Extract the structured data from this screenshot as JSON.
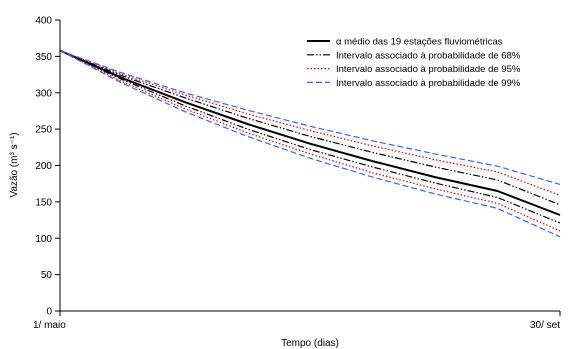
{
  "chart_data": {
    "type": "line",
    "xlabel": "Tempo (dias)",
    "ylabel": "Vazão (m³ s⁻¹)",
    "x_tick_labels": [
      "1/ maio",
      "30/ set"
    ],
    "x_range_days": [
      1,
      153
    ],
    "ylim": [
      0,
      400
    ],
    "y_ticks": [
      0,
      50,
      100,
      150,
      200,
      250,
      300,
      350,
      400
    ],
    "grid": false,
    "legend_position": "top-right",
    "x_sample_days": [
      1,
      20,
      39,
      58,
      77,
      96,
      115,
      134,
      153
    ],
    "series": [
      {
        "name": "α médio das 19 estações fluviométricas",
        "color": "#000000",
        "style": "solid",
        "values": [
          358,
          320,
          287,
          257,
          230,
          206,
          184,
          165,
          132
        ]
      },
      {
        "name": "Intervalo associado à probabilidade de 68%",
        "color": "#000000",
        "style": "dashdotdot",
        "bounds": [
          {
            "role": "upper",
            "values": [
              358,
              323,
              293,
              265,
              240,
              218,
              198,
              180,
              146
            ]
          },
          {
            "role": "lower",
            "values": [
              358,
              318,
              282,
              250,
              222,
              198,
              176,
              156,
              121
            ]
          }
        ]
      },
      {
        "name": "Intervalo associado à probabilidade de 95%",
        "color": "#e60000",
        "style": "dotted",
        "bounds": [
          {
            "role": "upper",
            "values": [
              358,
              325,
              297,
              271,
              248,
              227,
              208,
              191,
              159
            ]
          },
          {
            "role": "lower",
            "values": [
              358,
              315,
              278,
              245,
              216,
              190,
              168,
              148,
              110
            ]
          }
        ]
      },
      {
        "name": "Intervalo associado à probabilidade de 99%",
        "color": "#3366ff",
        "style": "dashed",
        "bounds": [
          {
            "role": "upper",
            "values": [
              358,
              327,
              300,
              276,
              254,
              234,
              216,
              199,
              174
            ]
          },
          {
            "role": "lower",
            "values": [
              358,
              313,
              274,
              240,
              210,
              184,
              161,
              141,
              102
            ]
          }
        ]
      }
    ]
  }
}
